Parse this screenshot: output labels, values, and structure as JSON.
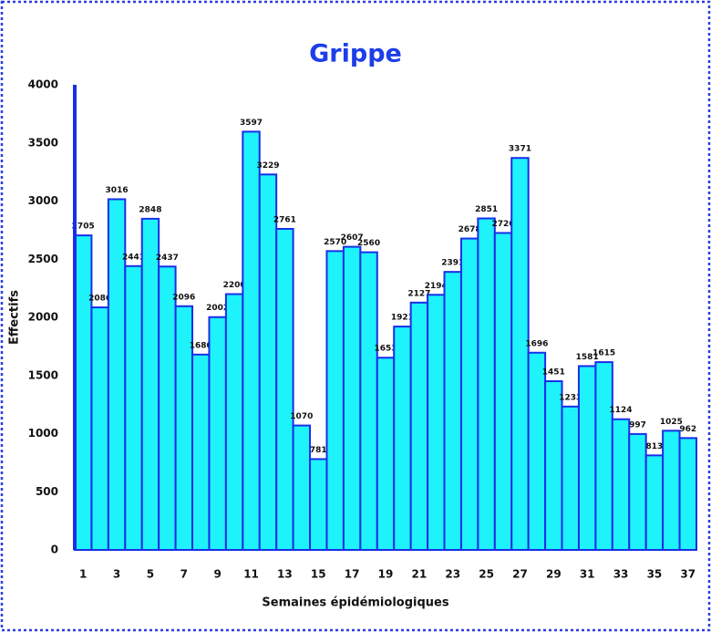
{
  "chart_data": {
    "type": "bar",
    "title": "Grippe",
    "x_label": "Semaines épidémiologiques",
    "y_label": "Effectifs",
    "categories": [
      "1",
      null,
      "3",
      null,
      "5",
      null,
      "7",
      null,
      "9",
      null,
      "11",
      null,
      "13",
      null,
      "15",
      null,
      "17",
      null,
      "19",
      null,
      "21",
      null,
      "23",
      null,
      "25",
      null,
      "27",
      null,
      "29",
      null,
      "31",
      null,
      "33",
      null,
      "35",
      null,
      "37"
    ],
    "values": [
      2705,
      2086,
      3016,
      2441,
      2848,
      2437,
      2096,
      1680,
      2002,
      2200,
      3597,
      3229,
      2761,
      1070,
      781,
      2570,
      2607,
      2560,
      1653,
      1921,
      2127,
      2194,
      2391,
      2678,
      2851,
      2726,
      3371,
      1696,
      1451,
      1233,
      1581,
      1615,
      1124,
      997,
      813,
      1025,
      962
    ],
    "color": "#1ef2fa",
    "edge_color": "#1a2ee8",
    "ylim": [
      0,
      4000
    ],
    "yticks": [
      0,
      500,
      1000,
      1500,
      2000,
      2500,
      3000,
      3500,
      4000
    ],
    "grid": false
  }
}
